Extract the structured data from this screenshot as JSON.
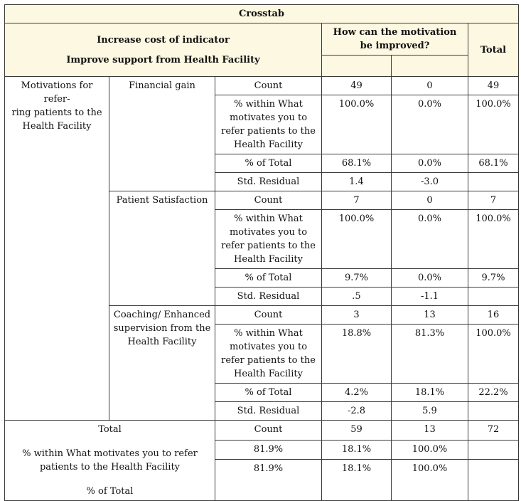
{
  "title": "Crosstab",
  "header": {
    "row_var_line1": "Increase cost of indicator",
    "row_var_line2": "Improve support from Health Facility",
    "col_var": "How can the motivation be improved?",
    "total": "Total"
  },
  "row_group_label": "Motivations for referring patients to the Health Facility",
  "row_group_label_display": "Motivations for refer-\nring patients to the\nHealth Facility",
  "groups": [
    {
      "name": "Financial gain",
      "rows": [
        {
          "stat": "Count",
          "c1": "49",
          "c2": "0",
          "total": "49"
        },
        {
          "stat": "% within What motivates you to refer patients to the Health Facility",
          "c1": "100.0%",
          "c2": "0.0%",
          "total": "100.0%"
        },
        {
          "stat": "% of Total",
          "c1": "68.1%",
          "c2": "0.0%",
          "total": "68.1%"
        },
        {
          "stat": "Std. Residual",
          "c1": "1.4",
          "c2": "-3.0",
          "total": ""
        }
      ]
    },
    {
      "name": "Patient Satisfaction",
      "rows": [
        {
          "stat": "Count",
          "c1": "7",
          "c2": "0",
          "total": "7"
        },
        {
          "stat": "% within What motivates you to refer patients to the Health Facility",
          "c1": "100.0%",
          "c2": "0.0%",
          "total": "100.0%"
        },
        {
          "stat": "% of Total",
          "c1": "9.7%",
          "c2": "0.0%",
          "total": "9.7%"
        },
        {
          "stat": "Std. Residual",
          "c1": ".5",
          "c2": "-1.1",
          "total": ""
        }
      ]
    },
    {
      "name": "Coaching/ Enhanced supervision from the Health Facility",
      "rows": [
        {
          "stat": "Count",
          "c1": "3",
          "c2": "13",
          "total": "16"
        },
        {
          "stat": "% within What motivates you to refer patients to the Health Facility",
          "c1": "18.8%",
          "c2": "81.3%",
          "total": "100.0%"
        },
        {
          "stat": "% of Total",
          "c1": "4.2%",
          "c2": "18.1%",
          "total": "22.2%"
        },
        {
          "stat": "Std. Residual",
          "c1": "-2.8",
          "c2": "5.9",
          "total": ""
        }
      ]
    }
  ],
  "total_block": {
    "label": "Total",
    "within_label": "% within What motivates you to refer patients to the Health Facility",
    "of_total_label": "% of Total",
    "count_row": {
      "stat": "Count",
      "c1": "59",
      "c2": "13",
      "total": "72"
    },
    "row2": {
      "a": "81.9%",
      "b": "18.1%",
      "c": "100.0%",
      "d": ""
    },
    "row3": {
      "a": "81.9%",
      "b": "18.1%",
      "c": "100.0%",
      "d": ""
    }
  }
}
